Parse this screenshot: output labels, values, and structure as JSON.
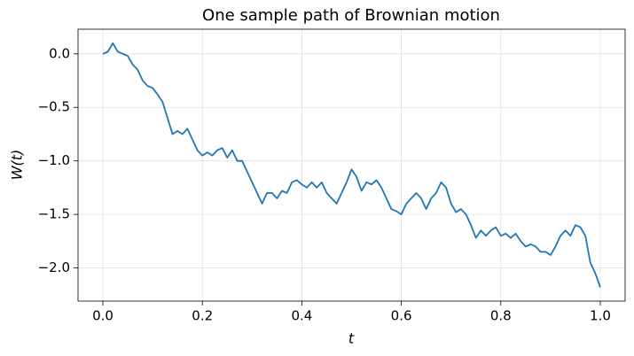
{
  "chart_data": {
    "type": "line",
    "title": "One sample path of Brownian motion",
    "xlabel": "t",
    "ylabel": "W(t)",
    "color": "#1f77b4",
    "grid": true,
    "xlim": [
      -0.05,
      1.05
    ],
    "ylim": [
      -2.31,
      0.23
    ],
    "xticks": [
      {
        "value": 0,
        "label": "0.0"
      },
      {
        "value": 0.2,
        "label": "0.2"
      },
      {
        "value": 0.4,
        "label": "0.4"
      },
      {
        "value": 0.6,
        "label": "0.6"
      },
      {
        "value": 0.8,
        "label": "0.8"
      },
      {
        "value": 1,
        "label": "1.0"
      }
    ],
    "yticks": [
      {
        "value": 0,
        "label": "0.0"
      },
      {
        "value": -0.5,
        "label": "−0.5"
      },
      {
        "value": -1,
        "label": "−1.0"
      },
      {
        "value": -1.5,
        "label": "−1.5"
      },
      {
        "value": -2,
        "label": "−2.0"
      }
    ],
    "x": [
      0,
      0.01,
      0.02,
      0.03,
      0.04,
      0.05,
      0.06,
      0.07,
      0.08,
      0.09,
      0.1,
      0.11,
      0.12,
      0.13,
      0.14,
      0.15,
      0.16,
      0.17,
      0.18,
      0.19,
      0.2,
      0.21,
      0.22,
      0.23,
      0.24,
      0.25,
      0.26,
      0.27,
      0.28,
      0.29,
      0.3,
      0.31,
      0.32,
      0.33,
      0.34,
      0.35,
      0.36,
      0.37,
      0.38,
      0.39,
      0.4,
      0.41,
      0.42,
      0.43,
      0.44,
      0.45,
      0.46,
      0.47,
      0.48,
      0.49,
      0.5,
      0.51,
      0.52,
      0.53,
      0.54,
      0.55,
      0.56,
      0.57,
      0.58,
      0.59,
      0.6,
      0.61,
      0.62,
      0.63,
      0.64,
      0.65,
      0.66,
      0.67,
      0.68,
      0.69,
      0.7,
      0.71,
      0.72,
      0.73,
      0.74,
      0.75,
      0.76,
      0.77,
      0.78,
      0.79,
      0.8,
      0.81,
      0.82,
      0.83,
      0.84,
      0.85,
      0.86,
      0.87,
      0.88,
      0.89,
      0.9,
      0.91,
      0.92,
      0.93,
      0.94,
      0.95,
      0.96,
      0.97,
      0.98,
      0.99,
      1
    ],
    "values": [
      0,
      0.02,
      0.1,
      0.02,
      0,
      -0.02,
      -0.1,
      -0.15,
      -0.25,
      -0.3,
      -0.32,
      -0.38,
      -0.45,
      -0.6,
      -0.75,
      -0.72,
      -0.75,
      -0.7,
      -0.8,
      -0.9,
      -0.95,
      -0.92,
      -0.95,
      -0.9,
      -0.88,
      -0.97,
      -0.9,
      -1,
      -1,
      -1.1,
      -1.2,
      -1.3,
      -1.4,
      -1.3,
      -1.3,
      -1.35,
      -1.28,
      -1.3,
      -1.2,
      -1.18,
      -1.22,
      -1.25,
      -1.2,
      -1.25,
      -1.2,
      -1.3,
      -1.35,
      -1.4,
      -1.3,
      -1.2,
      -1.08,
      -1.15,
      -1.28,
      -1.2,
      -1.22,
      -1.18,
      -1.25,
      -1.35,
      -1.45,
      -1.47,
      -1.5,
      -1.4,
      -1.35,
      -1.3,
      -1.35,
      -1.45,
      -1.35,
      -1.3,
      -1.2,
      -1.25,
      -1.4,
      -1.48,
      -1.45,
      -1.5,
      -1.6,
      -1.72,
      -1.65,
      -1.7,
      -1.65,
      -1.62,
      -1.7,
      -1.68,
      -1.72,
      -1.68,
      -1.75,
      -1.8,
      -1.78,
      -1.8,
      -1.85,
      -1.85,
      -1.88,
      -1.8,
      -1.7,
      -1.65,
      -1.7,
      -1.6,
      -1.62,
      -1.7,
      -1.95,
      -2.05,
      -2.18
    ]
  }
}
